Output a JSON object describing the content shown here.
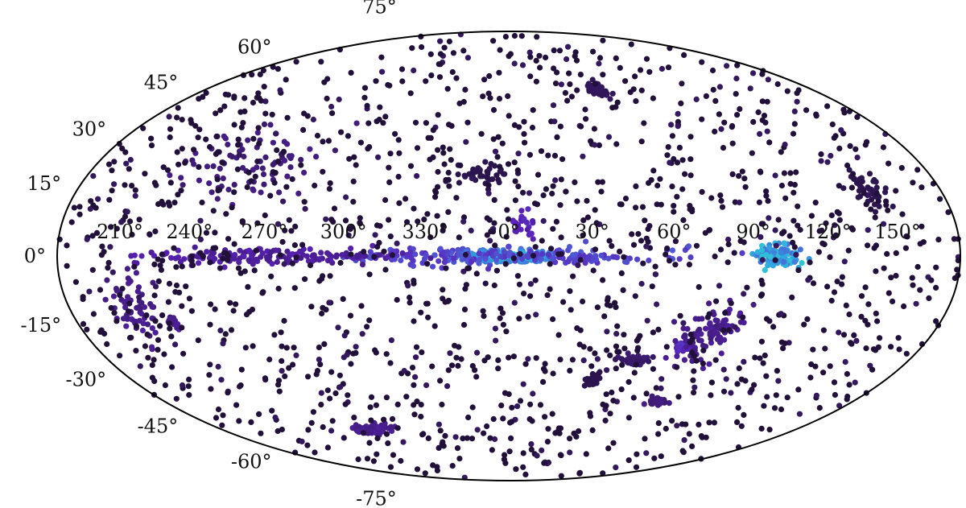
{
  "chart_data": {
    "type": "scatter",
    "projection": "aitoff-hammer",
    "title": "",
    "xlabel": "",
    "ylabel": "",
    "xlim": [
      -180,
      180
    ],
    "ylim": [
      -90,
      90
    ],
    "grid": false,
    "legend": "none",
    "colormap": [
      "#1e0f33",
      "#3a1b6b",
      "#5a21b8",
      "#4f5ad6",
      "#2fa6e0",
      "#33f0c8"
    ],
    "tick_labels_longitude": [
      {
        "text": "210°",
        "lon": 210
      },
      {
        "text": "240°",
        "lon": 240
      },
      {
        "text": "270°",
        "lon": 270
      },
      {
        "text": "300°",
        "lon": 300
      },
      {
        "text": "330°",
        "lon": 330
      },
      {
        "text": "0°",
        "lon": 0
      },
      {
        "text": "30°",
        "lon": 30
      },
      {
        "text": "60°",
        "lon": 60
      },
      {
        "text": "90°",
        "lon": 90
      },
      {
        "text": "120°",
        "lon": 120
      },
      {
        "text": "150°",
        "lon": 150
      }
    ],
    "tick_labels_latitude": [
      {
        "text": "75°",
        "lat": 75
      },
      {
        "text": "60°",
        "lat": 60
      },
      {
        "text": "45°",
        "lat": 45
      },
      {
        "text": "30°",
        "lat": 30
      },
      {
        "text": "15°",
        "lat": 15
      },
      {
        "text": "0°",
        "lat": 0
      },
      {
        "text": "-15°",
        "lat": -15
      },
      {
        "text": "-30°",
        "lat": -30
      },
      {
        "text": "-45°",
        "lat": -45
      },
      {
        "text": "-60°",
        "lat": -60
      },
      {
        "text": "-75°",
        "lat": -75
      }
    ],
    "clusters": [
      {
        "lon": 0,
        "lat": 0,
        "spread_lon": 20,
        "spread_lat": 2.5,
        "n": 220,
        "value": 1.0
      },
      {
        "lon": 0,
        "lat": 0,
        "spread_lon": 60,
        "spread_lat": 3,
        "n": 180,
        "value": 0.55
      },
      {
        "lon": -90,
        "lat": 0,
        "spread_lon": 55,
        "spread_lat": 2.5,
        "n": 150,
        "value": 0.35
      },
      {
        "lon": 100,
        "lat": 0,
        "spread_lon": 10,
        "spread_lat": 4,
        "n": 90,
        "value": 0.8
      },
      {
        "lon": 5,
        "lat": 12,
        "spread_lon": 4,
        "spread_lat": 6,
        "n": 25,
        "value": 0.4
      },
      {
        "lon": 72,
        "lat": -32,
        "spread_lon": 2.5,
        "spread_lat": 1.5,
        "n": 60,
        "value": 0.45
      },
      {
        "lon": 80,
        "lat": -27,
        "spread_lon": 12,
        "spread_lat": 10,
        "n": 90,
        "value": 0.3
      },
      {
        "lon": -95,
        "lat": -62,
        "spread_lon": 12,
        "spread_lat": 2,
        "n": 90,
        "value": 0.3
      },
      {
        "lon": 40,
        "lat": -45,
        "spread_lon": 3,
        "spread_lat": 2.5,
        "n": 40,
        "value": 0.1
      },
      {
        "lon": 55,
        "lat": -37,
        "spread_lon": 6,
        "spread_lat": 2,
        "n": 40,
        "value": 0.2
      },
      {
        "lon": 80,
        "lat": -52,
        "spread_lon": 6,
        "spread_lat": 1.5,
        "n": 30,
        "value": 0.25
      },
      {
        "lon": -135,
        "lat": -20,
        "spread_lon": 2,
        "spread_lat": 2,
        "n": 20,
        "value": 0.3
      },
      {
        "lon": -150,
        "lat": -15,
        "spread_lon": 10,
        "spread_lat": 10,
        "n": 60,
        "value": 0.3
      },
      {
        "lon": 60,
        "lat": 62,
        "spread_lon": 6,
        "spread_lat": 3,
        "n": 40,
        "value": 0.15
      },
      {
        "lon": -10,
        "lat": 30,
        "spread_lon": 10,
        "spread_lat": 5,
        "n": 40,
        "value": 0.1
      },
      {
        "lon": -110,
        "lat": 30,
        "spread_lon": 30,
        "spread_lat": 12,
        "n": 80,
        "value": 0.25
      },
      {
        "lon": 145,
        "lat": 20,
        "spread_lon": 8,
        "spread_lat": 6,
        "n": 40,
        "value": 0.1
      },
      {
        "lon": 0,
        "lat": 0,
        "spread_lon": 180,
        "spread_lat": 90,
        "n": 1500,
        "value": 0.0
      }
    ]
  }
}
